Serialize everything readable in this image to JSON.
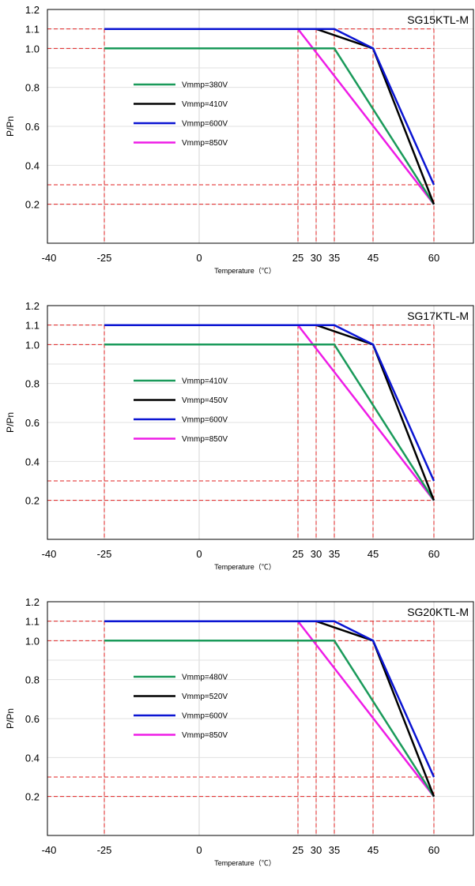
{
  "axis": {
    "y_label": "P/Pn",
    "x_label": "Temperature（℃）",
    "x_ticks": [
      "-40",
      "-25",
      "0",
      "25",
      "30",
      "35",
      "45",
      "60"
    ],
    "y_ticks": [
      "0.2",
      "0.4",
      "0.6",
      "0.8",
      "1.0",
      "1.1",
      "1.2"
    ]
  },
  "chart_data": [
    {
      "type": "line",
      "title": "SG15KTL-M",
      "xlabel": "Temperature（℃）",
      "ylabel": "P/Pn",
      "xlim": [
        -45,
        70
      ],
      "ylim": [
        0,
        1.2
      ],
      "x_ticks": [
        -40,
        -25,
        0,
        25,
        30,
        35,
        45,
        60
      ],
      "y_ticks": [
        0.2,
        0.4,
        0.6,
        0.8,
        1.0,
        1.1,
        1.2
      ],
      "grid": true,
      "legend_position": "center-left",
      "series": [
        {
          "name": "Vmmp=380V",
          "color": "#1a9a5a",
          "points": [
            [
              -25,
              1.0
            ],
            [
              35,
              1.0
            ],
            [
              60,
              0.2
            ]
          ]
        },
        {
          "name": "Vmmp=410V",
          "color": "#000000",
          "points": [
            [
              -25,
              1.1
            ],
            [
              30,
              1.1
            ],
            [
              45,
              1.0
            ],
            [
              60,
              0.2
            ]
          ]
        },
        {
          "name": "Vmmp=600V",
          "color": "#0a14d2",
          "points": [
            [
              -25,
              1.1
            ],
            [
              35,
              1.1
            ],
            [
              45,
              1.0
            ],
            [
              60,
              0.3
            ]
          ]
        },
        {
          "name": "Vmmp=850V",
          "color": "#ee1ce6",
          "points": [
            [
              25,
              1.1
            ],
            [
              60,
              0.2
            ]
          ]
        }
      ],
      "reference_lines": {
        "vertical": [
          -25,
          25,
          30,
          35,
          45,
          60
        ],
        "horizontal": [
          1.1,
          1.0,
          0.3,
          0.2
        ],
        "color": "#e02020"
      }
    },
    {
      "type": "line",
      "title": "SG17KTL-M",
      "xlabel": "Temperature（℃）",
      "ylabel": "P/Pn",
      "xlim": [
        -45,
        70
      ],
      "ylim": [
        0,
        1.2
      ],
      "x_ticks": [
        -40,
        -25,
        0,
        25,
        30,
        35,
        45,
        60
      ],
      "y_ticks": [
        0.2,
        0.4,
        0.6,
        0.8,
        1.0,
        1.1,
        1.2
      ],
      "grid": true,
      "legend_position": "center-left",
      "series": [
        {
          "name": "Vmmp=410V",
          "color": "#1a9a5a",
          "points": [
            [
              -25,
              1.0
            ],
            [
              35,
              1.0
            ],
            [
              60,
              0.2
            ]
          ]
        },
        {
          "name": "Vmmp=450V",
          "color": "#000000",
          "points": [
            [
              -25,
              1.1
            ],
            [
              30,
              1.1
            ],
            [
              45,
              1.0
            ],
            [
              60,
              0.2
            ]
          ]
        },
        {
          "name": "Vmmp=600V",
          "color": "#0a14d2",
          "points": [
            [
              -25,
              1.1
            ],
            [
              35,
              1.1
            ],
            [
              45,
              1.0
            ],
            [
              60,
              0.3
            ]
          ]
        },
        {
          "name": "Vmmp=850V",
          "color": "#ee1ce6",
          "points": [
            [
              25,
              1.1
            ],
            [
              60,
              0.2
            ]
          ]
        }
      ],
      "reference_lines": {
        "vertical": [
          -25,
          25,
          30,
          35,
          45,
          60
        ],
        "horizontal": [
          1.1,
          1.0,
          0.3,
          0.2
        ],
        "color": "#e02020"
      }
    },
    {
      "type": "line",
      "title": "SG20KTL-M",
      "xlabel": "Temperature（℃）",
      "ylabel": "P/Pn",
      "xlim": [
        -45,
        70
      ],
      "ylim": [
        0,
        1.2
      ],
      "x_ticks": [
        -40,
        -25,
        0,
        25,
        30,
        35,
        45,
        60
      ],
      "y_ticks": [
        0.2,
        0.4,
        0.6,
        0.8,
        1.0,
        1.1,
        1.2
      ],
      "grid": true,
      "legend_position": "center-left",
      "series": [
        {
          "name": "Vmmp=480V",
          "color": "#1a9a5a",
          "points": [
            [
              -25,
              1.0
            ],
            [
              35,
              1.0
            ],
            [
              60,
              0.2
            ]
          ]
        },
        {
          "name": "Vmmp=520V",
          "color": "#000000",
          "points": [
            [
              -25,
              1.1
            ],
            [
              30,
              1.1
            ],
            [
              45,
              1.0
            ],
            [
              60,
              0.2
            ]
          ]
        },
        {
          "name": "Vmmp=600V",
          "color": "#0a14d2",
          "points": [
            [
              -25,
              1.1
            ],
            [
              35,
              1.1
            ],
            [
              45,
              1.0
            ],
            [
              60,
              0.3
            ]
          ]
        },
        {
          "name": "Vmmp=850V",
          "color": "#ee1ce6",
          "points": [
            [
              25,
              1.1
            ],
            [
              60,
              0.2
            ]
          ]
        }
      ],
      "reference_lines": {
        "vertical": [
          -25,
          25,
          30,
          35,
          45,
          60
        ],
        "horizontal": [
          1.1,
          1.0,
          0.3,
          0.2
        ],
        "color": "#e02020"
      }
    }
  ]
}
